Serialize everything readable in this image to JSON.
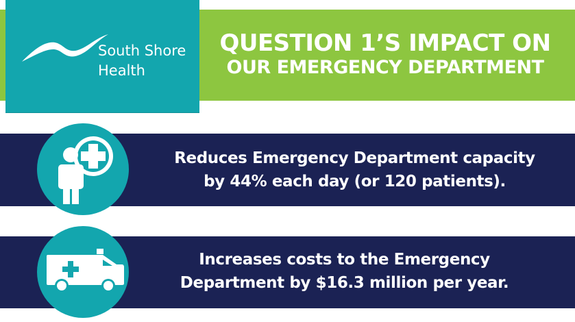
{
  "header": {
    "brand": {
      "line1": "South Shore",
      "line2": "Health",
      "logo_icon": "bird-wave-logo"
    },
    "title_line1": "QUESTION 1’S IMPACT ON",
    "title_line2": "OUR EMERGENCY DEPARTMENT"
  },
  "impacts": [
    {
      "icon": "patient-cross-icon",
      "line1": "Reduces Emergency Department capacity",
      "line2": "by 44% each day (or 120 patients)."
    },
    {
      "icon": "ambulance-icon",
      "line1": "Increases costs to the Emergency",
      "line2": "Department by $16.3 million per year."
    }
  ],
  "colors": {
    "green": "#8dc640",
    "teal": "#13a6ae",
    "navy": "#1b2254",
    "text": "#ffffff"
  }
}
